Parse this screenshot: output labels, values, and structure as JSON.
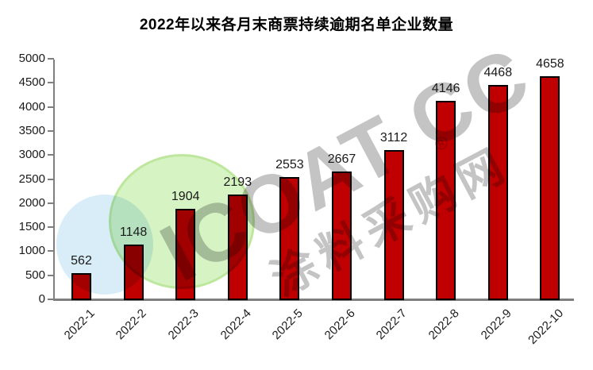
{
  "chart_data": {
    "type": "bar",
    "title": "2022年以来各月末商票持续逾期名单企业数量",
    "categories": [
      "2022-1",
      "2022-2",
      "2022-3",
      "2022-4",
      "2022-5",
      "2022-6",
      "2022-7",
      "2022-8",
      "2022-9",
      "2022-10"
    ],
    "values": [
      562,
      1148,
      1904,
      2193,
      2553,
      2667,
      3112,
      4146,
      4468,
      4658
    ],
    "xlabel": "",
    "ylabel": "",
    "ylim": [
      0,
      5000
    ],
    "ytick_step": 500,
    "grid": false,
    "legend": false,
    "bar_color": "#C00000",
    "bar_border_color": "#000000",
    "axis_color": "#7F7F7F",
    "label_color": "#1A1A1A"
  },
  "watermark": {
    "line1": "ICOAT CC",
    "line2": "涂料采购网",
    "registered": "®",
    "color": "#C4C4C4"
  },
  "decorations": {
    "blue_circle_color": "#D9EDF8",
    "green_circle_color": "#D6F3C4",
    "green_circle_rim_color": "#BEE79E"
  }
}
